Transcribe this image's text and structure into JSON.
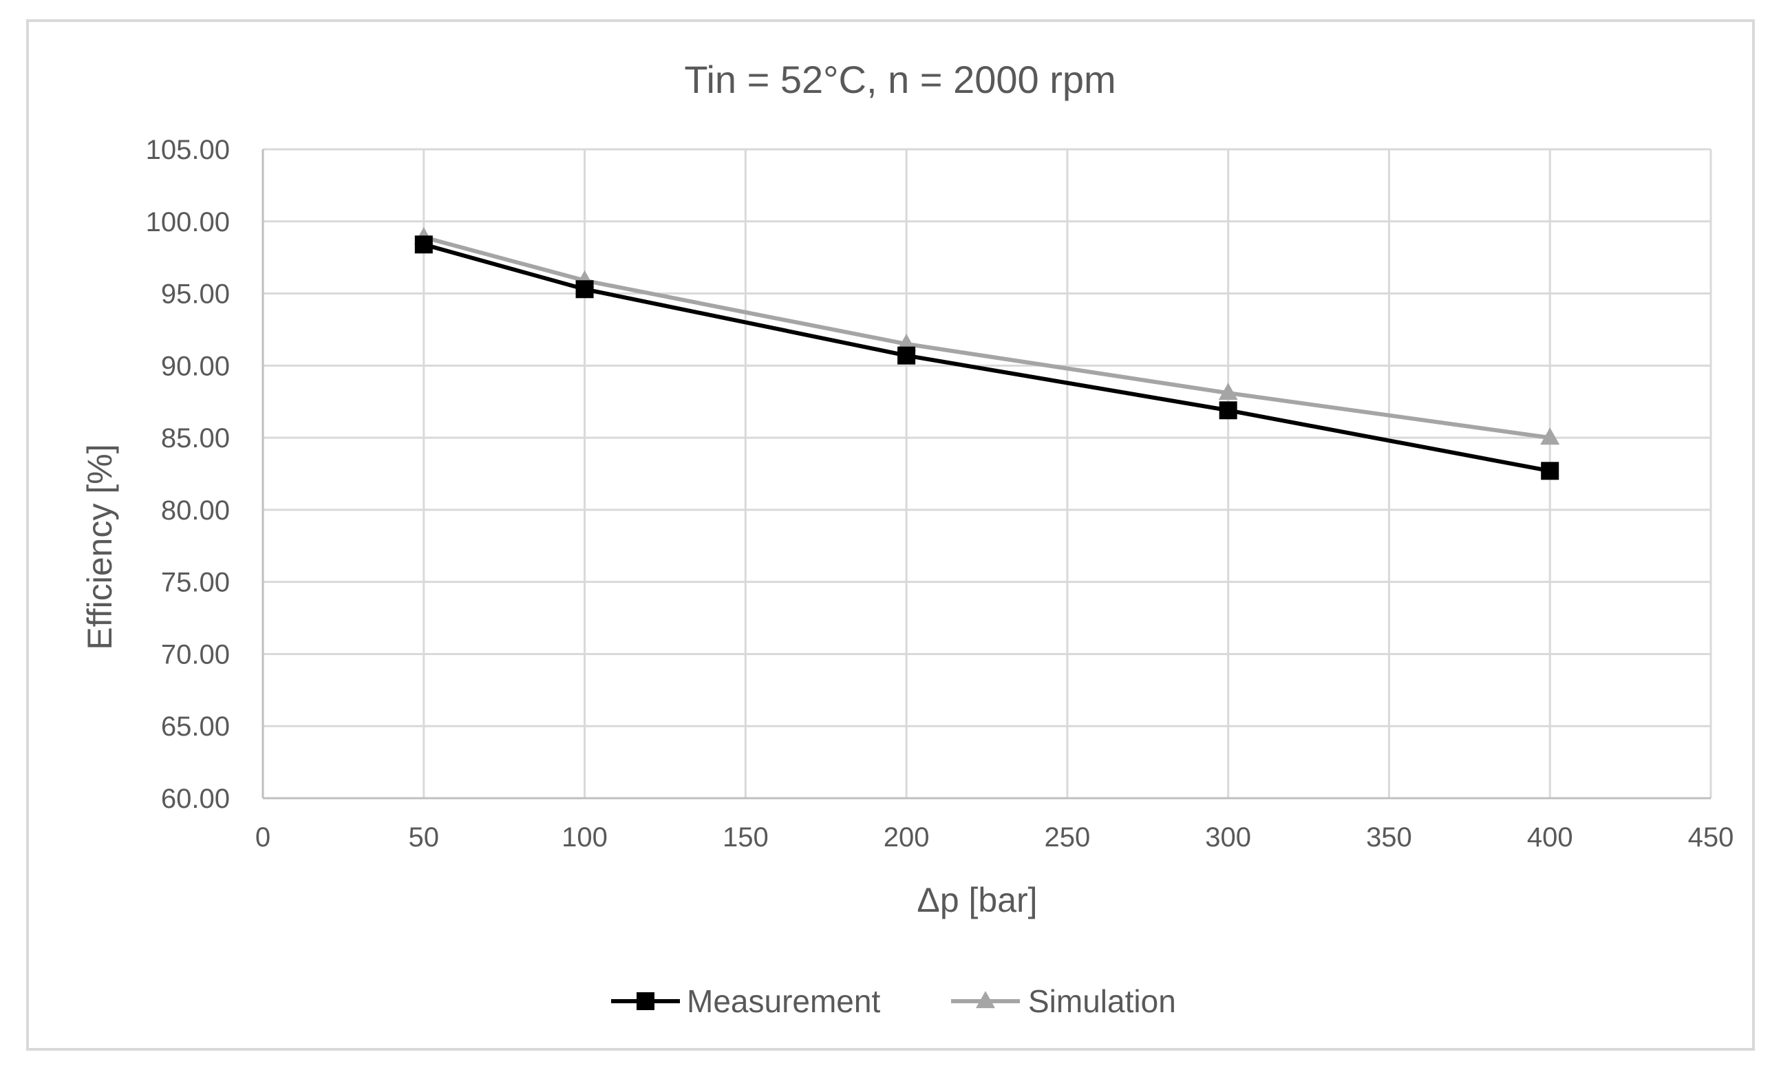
{
  "chart_data": {
    "type": "line",
    "title": "Tin = 52°C, n = 2000 rpm",
    "xlabel": "Δp [bar]",
    "ylabel": "Efficiency [%]",
    "xlim": [
      0,
      450
    ],
    "ylim": [
      60,
      105
    ],
    "x_ticks": [
      0,
      50,
      100,
      150,
      200,
      250,
      300,
      350,
      400,
      450
    ],
    "x_tick_labels": [
      "0",
      "50",
      "100",
      "150",
      "200",
      "250",
      "300",
      "350",
      "400",
      "450"
    ],
    "y_ticks": [
      60,
      65,
      70,
      75,
      80,
      85,
      90,
      95,
      100,
      105
    ],
    "y_tick_labels": [
      "60.00",
      "65.00",
      "70.00",
      "75.00",
      "80.00",
      "85.00",
      "90.00",
      "95.00",
      "100.00",
      "105.00"
    ],
    "grid": true,
    "legend_position": "bottom",
    "series": [
      {
        "name": "Measurement",
        "color": "#000000",
        "marker": "square",
        "x": [
          50,
          100,
          200,
          300,
          400
        ],
        "y": [
          98.4,
          95.3,
          90.7,
          86.9,
          82.7
        ]
      },
      {
        "name": "Simulation",
        "color": "#a5a5a5",
        "marker": "triangle",
        "x": [
          50,
          100,
          200,
          300,
          400
        ],
        "y": [
          98.9,
          95.9,
          91.5,
          88.1,
          85.0
        ]
      }
    ]
  }
}
